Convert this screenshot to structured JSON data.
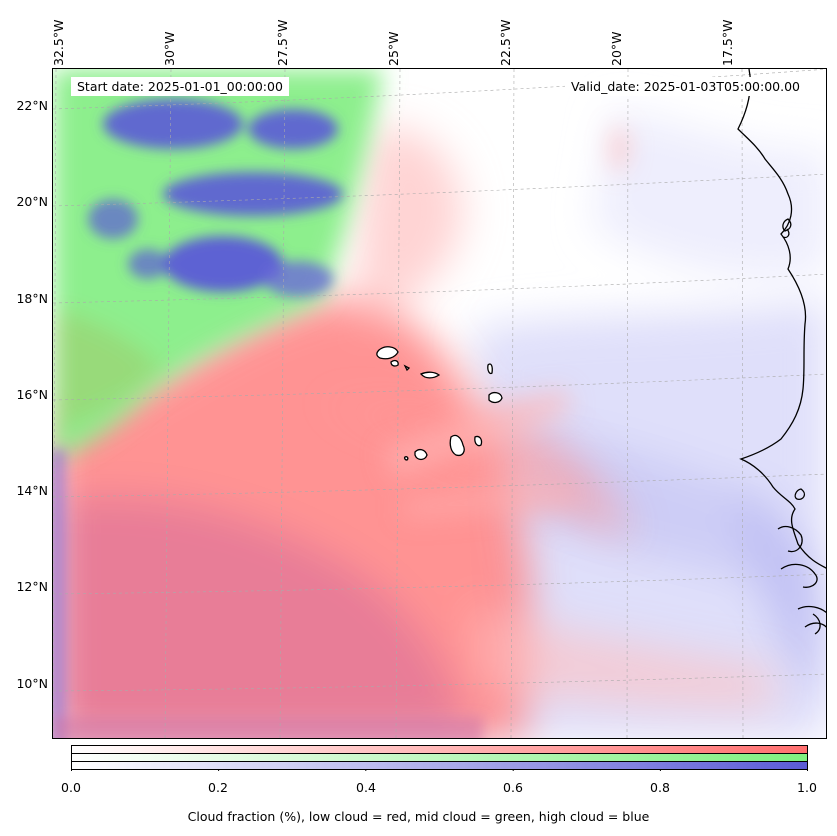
{
  "map": {
    "start_date": "Start date: 2025-01-01_00:00:00",
    "valid_date": "Valid_date: 2025-01-03T05:00:00.00",
    "lat_labels": [
      "22°N",
      "20°N",
      "18°N",
      "16°N",
      "14°N",
      "12°N",
      "10°N"
    ],
    "lon_labels": [
      "32.5°W",
      "30°W",
      "27.5°W",
      "25°W",
      "22.5°W",
      "20°W",
      "17.5°W"
    ]
  },
  "colorbar": {
    "ticks": [
      "0.0",
      "0.2",
      "0.4",
      "0.6",
      "0.8",
      "1.0"
    ],
    "caption": "Cloud fraction (%), low cloud = red, mid cloud = green, high cloud = blue",
    "colors": {
      "low": "#ff6f6f",
      "mid": "#7ff07f",
      "high": "#5b5bd6"
    }
  }
}
